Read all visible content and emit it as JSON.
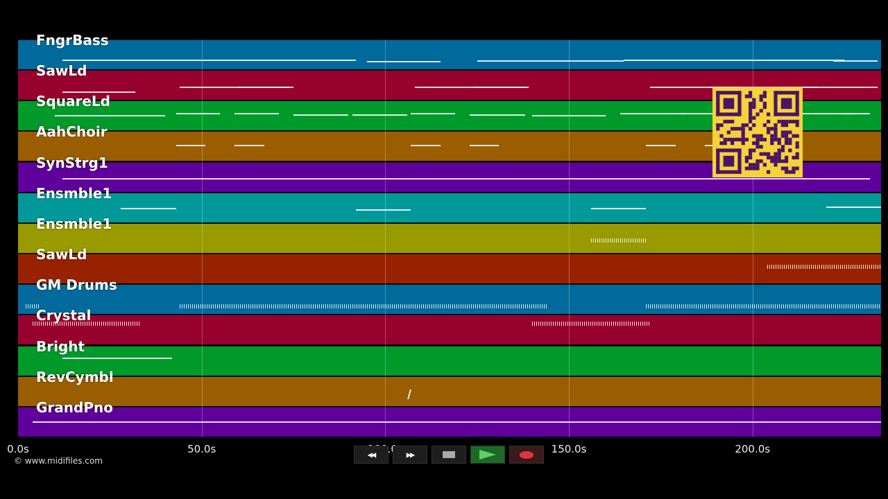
{
  "tracks": [
    {
      "name": "FngrBass",
      "color": "#006a9c"
    },
    {
      "name": "SawLd",
      "color": "#98002e"
    },
    {
      "name": "SquareLd",
      "color": "#009a2a"
    },
    {
      "name": "AahChoir",
      "color": "#9a5e00"
    },
    {
      "name": "SynStrg1",
      "color": "#5f009c"
    },
    {
      "name": "Ensmble1",
      "color": "#00999a"
    },
    {
      "name": "Ensmble1",
      "color": "#989a00"
    },
    {
      "name": "SawLd",
      "color": "#982200"
    },
    {
      "name": "GM Drums",
      "color": "#006a9c"
    },
    {
      "name": "Crystal",
      "color": "#98002e"
    },
    {
      "name": "Bright",
      "color": "#009a2a"
    },
    {
      "name": "RevCymbl",
      "color": "#9a5e00"
    },
    {
      "name": "GrandPno",
      "color": "#5f009c"
    }
  ],
  "timeline": {
    "ticks": [
      {
        "label": "0.0s",
        "value": 0
      },
      {
        "label": "50.0s",
        "value": 50
      },
      {
        "label": "100.0s",
        "value": 100
      },
      {
        "label": "150.0s",
        "value": 150
      },
      {
        "label": "200.0s",
        "value": 200
      }
    ],
    "max_seconds": 235
  },
  "transport": {
    "rewind": "◀◀",
    "forward": "▶▶",
    "stop_icon": "stop-icon",
    "play_icon": "play-icon",
    "record_icon": "record-icon"
  },
  "footer": {
    "copyright": "© www.midifiles.com"
  }
}
